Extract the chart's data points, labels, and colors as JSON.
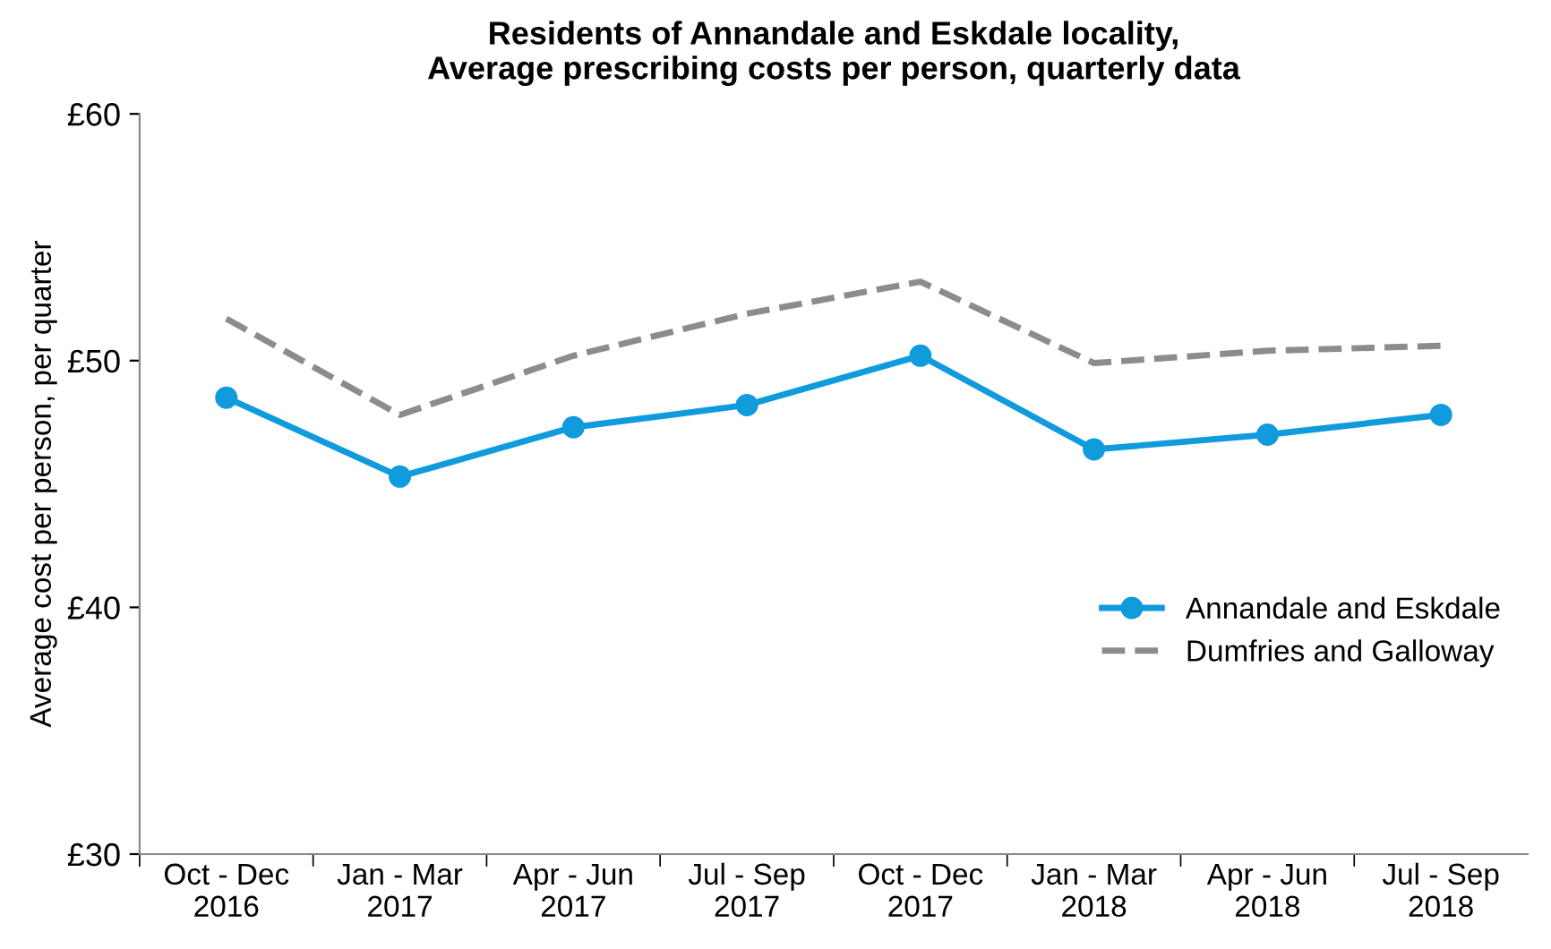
{
  "chart_data": {
    "type": "line",
    "title": "Residents of Annandale and Eskdale locality,\nAverage prescribing costs per person, quarterly data",
    "ylabel": "Average cost per person, per quarter",
    "categories": [
      "Oct - Dec\n2016",
      "Jan - Mar\n2017",
      "Apr - Jun\n2017",
      "Jul - Sep\n2017",
      "Oct - Dec\n2017",
      "Jan - Mar\n2018",
      "Apr - Jun\n2018",
      "Jul - Sep\n2018"
    ],
    "series": [
      {
        "name": "Annandale and Eskdale",
        "color": "#0f9bdc",
        "marker": "circle",
        "line_style": "solid",
        "values": [
          48.5,
          45.3,
          47.3,
          48.2,
          50.2,
          46.4,
          47.0,
          47.8
        ]
      },
      {
        "name": "Dumfries and Galloway",
        "color": "#8c8c8c",
        "marker": "none",
        "line_style": "dashed",
        "values": [
          51.7,
          47.8,
          50.2,
          51.9,
          53.2,
          49.9,
          50.4,
          50.6
        ]
      }
    ],
    "ylim": [
      30,
      60
    ],
    "yticks": [
      {
        "value": 30,
        "label": "£30"
      },
      {
        "value": 40,
        "label": "£40"
      },
      {
        "value": 50,
        "label": "£50"
      },
      {
        "value": 60,
        "label": "£60"
      }
    ],
    "grid": false,
    "legend": "right"
  }
}
